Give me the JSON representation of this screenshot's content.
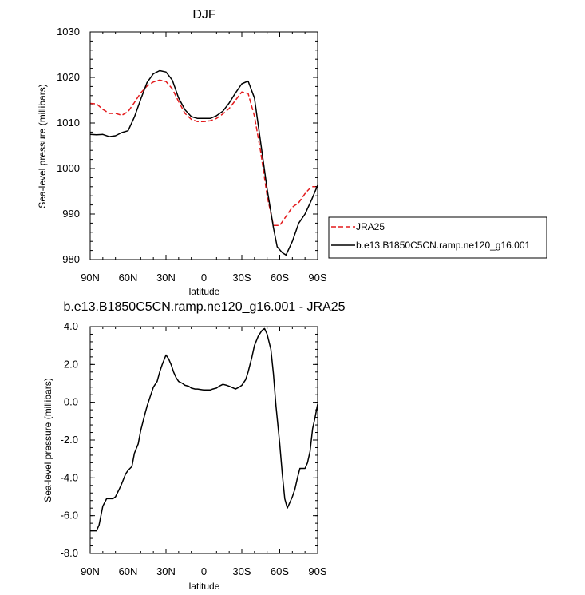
{
  "chart_data": [
    {
      "type": "line",
      "title": "DJF",
      "xlabel": "latitude",
      "ylabel": "Sea-level pressure (millibars)",
      "xlim": [
        -90,
        90
      ],
      "ylim": [
        980,
        1030
      ],
      "x_ticks": [
        -90,
        -60,
        -30,
        0,
        30,
        60,
        90
      ],
      "x_tick_labels": [
        "90N",
        "60N",
        "30N",
        "0",
        "30S",
        "60S",
        "90S"
      ],
      "y_ticks": [
        980,
        990,
        1000,
        1010,
        1020,
        1030
      ],
      "y_tick_labels": [
        "980",
        "990",
        "1000",
        "1010",
        "1020",
        "1030"
      ],
      "legend_position": "right",
      "series": [
        {
          "name": "JRA25",
          "color": "#e31a1c",
          "dash": "dashed",
          "x": [
            -90,
            -85,
            -80,
            -75,
            -70,
            -65,
            -60,
            -55,
            -50,
            -45,
            -40,
            -35,
            -30,
            -25,
            -20,
            -15,
            -10,
            -5,
            0,
            5,
            10,
            15,
            20,
            25,
            30,
            35,
            40,
            45,
            50,
            55,
            60,
            65,
            70,
            75,
            80,
            85,
            90
          ],
          "values": [
            1014.3,
            1014.2,
            1013.0,
            1012.1,
            1012.1,
            1011.7,
            1012.5,
            1014.5,
            1016.6,
            1018.1,
            1019.0,
            1019.4,
            1019.1,
            1017.5,
            1014.7,
            1012.1,
            1010.8,
            1010.3,
            1010.3,
            1010.5,
            1011.0,
            1012.0,
            1013.2,
            1015.0,
            1016.8,
            1016.5,
            1011.5,
            1003.5,
            994.0,
            987.5,
            987.5,
            989.5,
            991.5,
            992.5,
            994.5,
            996.0,
            996.0
          ]
        },
        {
          "name": "b.e13.B1850C5CN.ramp.ne120_g16.001",
          "color": "#000000",
          "dash": "solid",
          "x": [
            -90,
            -85,
            -80,
            -75,
            -70,
            -65,
            -60,
            -55,
            -50,
            -45,
            -40,
            -35,
            -30,
            -25,
            -20,
            -15,
            -10,
            -5,
            0,
            5,
            10,
            15,
            20,
            25,
            30,
            35,
            40,
            45,
            50,
            55,
            58,
            62,
            65,
            70,
            75,
            80,
            85,
            90
          ],
          "values": [
            1007.5,
            1007.4,
            1007.5,
            1007.0,
            1007.2,
            1007.9,
            1008.3,
            1011.3,
            1015.2,
            1018.9,
            1020.8,
            1021.5,
            1021.2,
            1019.4,
            1015.5,
            1012.9,
            1011.4,
            1011.0,
            1011.0,
            1011.0,
            1011.6,
            1012.6,
            1014.4,
            1016.6,
            1018.6,
            1019.2,
            1015.5,
            1005.5,
            995.5,
            987.0,
            982.8,
            981.5,
            981.0,
            984.0,
            988.0,
            990.0,
            993.0,
            996.3
          ]
        }
      ]
    },
    {
      "type": "line",
      "title": "b.e13.B1850C5CN.ramp.ne120_g16.001 - JRA25",
      "xlabel": "latitude",
      "ylabel": "Sea-level pressure (millibars)",
      "xlim": [
        -90,
        90
      ],
      "ylim": [
        -8,
        4
      ],
      "x_ticks": [
        -90,
        -60,
        -30,
        0,
        30,
        60,
        90
      ],
      "x_tick_labels": [
        "90N",
        "60N",
        "30N",
        "0",
        "30S",
        "60S",
        "90S"
      ],
      "y_ticks": [
        -8,
        -6,
        -4,
        -2,
        0,
        2,
        4
      ],
      "y_tick_labels": [
        "-8.0",
        "-6.0",
        "-4.0",
        "-2.0",
        "0.0",
        "2.0",
        "4.0"
      ],
      "series": [
        {
          "color": "#000000",
          "dash": "solid",
          "x": [
            -90,
            -87,
            -85,
            -83,
            -80,
            -77,
            -75,
            -72,
            -70,
            -67,
            -65,
            -62,
            -60,
            -57,
            -55,
            -52,
            -50,
            -47,
            -45,
            -42,
            -40,
            -37,
            -35,
            -33,
            -30,
            -28,
            -26,
            -24,
            -22,
            -20,
            -17,
            -15,
            -12,
            -10,
            -7,
            -5,
            0,
            5,
            7,
            10,
            12,
            15,
            18,
            20,
            25,
            28,
            30,
            33,
            35,
            38,
            40,
            43,
            46,
            48,
            50,
            53,
            55,
            57,
            60,
            62,
            64,
            66,
            68,
            70,
            72,
            74,
            76,
            78,
            80,
            82,
            84,
            86,
            88,
            90
          ],
          "values": [
            -6.8,
            -6.8,
            -6.8,
            -6.5,
            -5.5,
            -5.1,
            -5.1,
            -5.1,
            -5.0,
            -4.6,
            -4.3,
            -3.8,
            -3.6,
            -3.4,
            -2.7,
            -2.2,
            -1.5,
            -0.7,
            -0.2,
            0.4,
            0.8,
            1.1,
            1.6,
            2.0,
            2.5,
            2.3,
            2.0,
            1.6,
            1.3,
            1.1,
            1.0,
            0.9,
            0.85,
            0.75,
            0.7,
            0.7,
            0.65,
            0.65,
            0.7,
            0.75,
            0.85,
            0.95,
            0.9,
            0.85,
            0.7,
            0.8,
            0.9,
            1.2,
            1.6,
            2.4,
            3.0,
            3.5,
            3.8,
            3.9,
            3.6,
            2.8,
            1.5,
            -0.2,
            -2.2,
            -3.8,
            -5.1,
            -5.6,
            -5.3,
            -5.0,
            -4.6,
            -4.0,
            -3.5,
            -3.5,
            -3.5,
            -3.2,
            -2.6,
            -1.4,
            -0.8,
            -0.1
          ]
        }
      ]
    }
  ]
}
